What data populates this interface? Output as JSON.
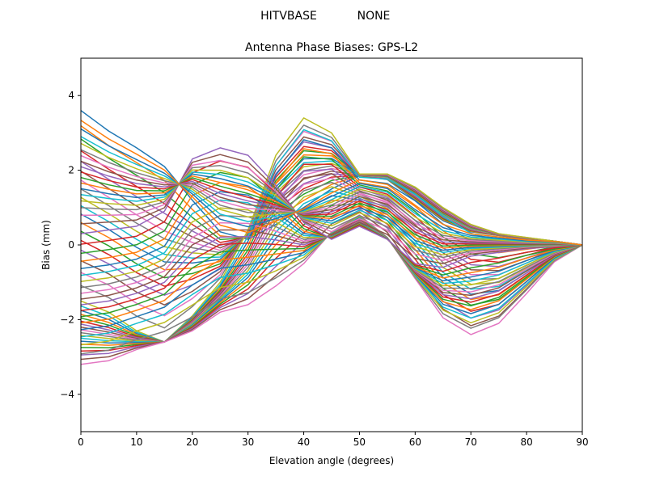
{
  "suptitle": {
    "left": "HITVBASE",
    "right": "NONE"
  },
  "chart_data": {
    "type": "line",
    "title": "Antenna Phase Biases: GPS-L2",
    "xlabel": "Elevation angle (degrees)",
    "ylabel": "Bias (mm)",
    "xlim": [
      0,
      90
    ],
    "ylim": [
      -5,
      5
    ],
    "xticks": [
      0,
      10,
      20,
      30,
      40,
      50,
      60,
      70,
      80,
      90
    ],
    "yticks": [
      -4,
      -2,
      0,
      2,
      4
    ],
    "ytick_labels": [
      "−4",
      "−2",
      "0",
      "2",
      "4"
    ],
    "grid": false,
    "x": [
      0,
      5,
      10,
      15,
      20,
      25,
      30,
      35,
      40,
      45,
      50,
      55,
      60,
      65,
      70,
      75,
      80,
      85,
      90
    ],
    "profile_A": [
      3.6,
      3.05,
      2.6,
      2.1,
      1.2,
      0.35,
      0.15,
      0.55,
      1.0,
      1.5,
      1.85,
      1.75,
      1.2,
      0.65,
      0.35,
      0.25,
      0.15,
      0.1,
      0.0
    ],
    "profile_B": [
      -1.5,
      -1.8,
      -2.3,
      -2.6,
      -1.9,
      -1.0,
      0.4,
      2.4,
      3.4,
      3.0,
      1.9,
      1.9,
      1.55,
      1.0,
      0.55,
      0.3,
      0.2,
      0.1,
      0.0
    ],
    "profile_C": [
      -3.2,
      -3.1,
      -2.8,
      -2.6,
      -2.3,
      -1.8,
      -1.6,
      -1.1,
      -0.5,
      0.35,
      0.8,
      0.2,
      -0.9,
      -1.95,
      -2.4,
      -2.1,
      -1.3,
      -0.45,
      0.0
    ],
    "profile_D": [
      0.3,
      0.4,
      0.5,
      0.9,
      2.3,
      2.6,
      2.4,
      1.6,
      0.6,
      0.15,
      0.5,
      0.15,
      -0.5,
      -0.6,
      -0.3,
      -0.2,
      -0.1,
      -0.05,
      0.0
    ],
    "series_count": 72,
    "colors": [
      "#1f77b4",
      "#ff7f0e",
      "#2ca02c",
      "#d62728",
      "#9467bd",
      "#8c564b",
      "#e377c2",
      "#7f7f7f",
      "#bcbd22",
      "#17becf"
    ]
  }
}
